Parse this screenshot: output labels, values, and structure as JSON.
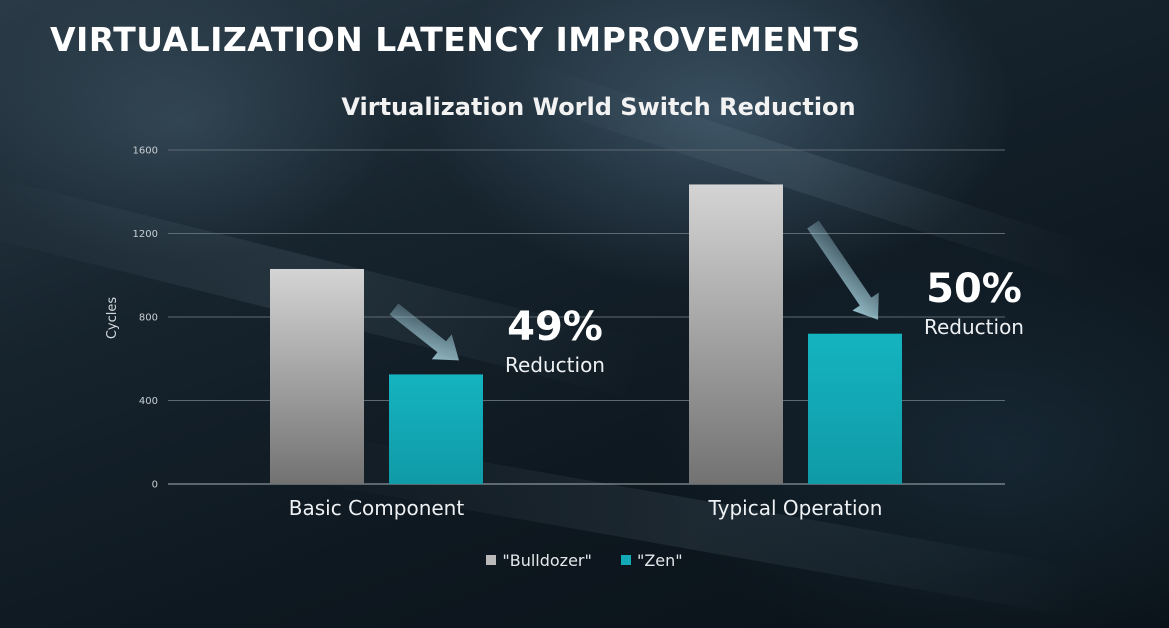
{
  "slide": {
    "title": "VIRTUALIZATION LATENCY IMPROVEMENTS"
  },
  "colors": {
    "bulldozer": "#b9b9b9",
    "zen": "#13a9b6",
    "arrow": "#a9d6e2"
  },
  "chart_data": {
    "type": "bar",
    "title": "Virtualization World Switch Reduction",
    "xlabel": "",
    "ylabel": "Cycles",
    "ylim": [
      0,
      1600
    ],
    "yticks": [
      "0",
      "400",
      "800",
      "1200",
      "1600"
    ],
    "grid": true,
    "legend_position": "bottom",
    "categories": [
      "Basic Component",
      "Typical Operation"
    ],
    "series": [
      {
        "name": "\"Bulldozer\"",
        "values": [
          1030,
          1435
        ]
      },
      {
        "name": "\"Zen\"",
        "values": [
          525,
          720
        ]
      }
    ],
    "annotations": [
      {
        "category": "Basic Component",
        "percent": "49%",
        "text": "Reduction"
      },
      {
        "category": "Typical Operation",
        "percent": "50%",
        "text": "Reduction"
      }
    ]
  }
}
